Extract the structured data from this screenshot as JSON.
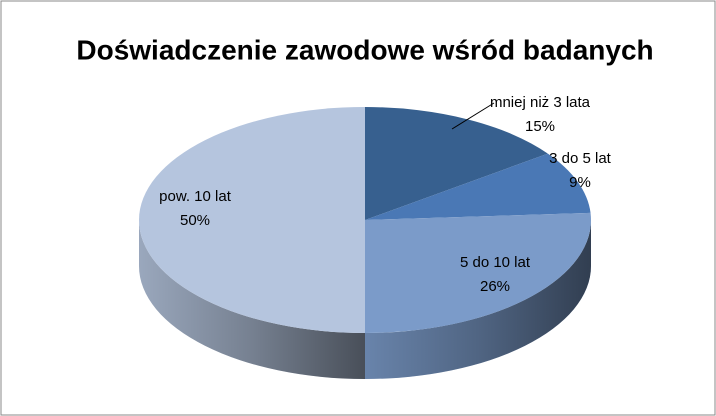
{
  "chart_data": {
    "type": "pie",
    "title": "Doświadczenie zawodowe wśród badanych",
    "categories": [
      "mniej niż 3 lata",
      "3 do 5 lat",
      "5 do 10 lat",
      "pow. 10 lat"
    ],
    "values": [
      15,
      9,
      26,
      50
    ],
    "value_labels": [
      "15%",
      "9%",
      "26%",
      "50%"
    ],
    "colors": [
      "#37608f",
      "#4a78b5",
      "#7b9bc9",
      "#b5c5de"
    ]
  }
}
